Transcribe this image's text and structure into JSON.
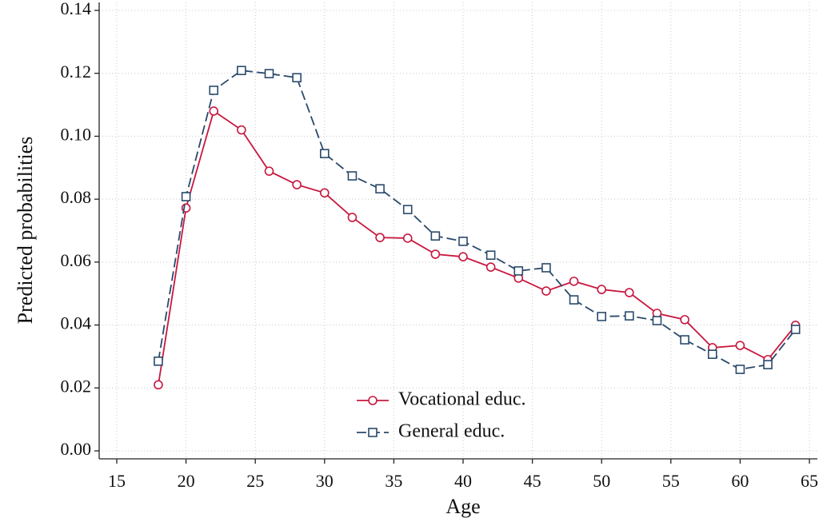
{
  "chart_data": {
    "type": "line",
    "xlabel": "Age",
    "ylabel": "Predicted probabilities",
    "x": [
      18,
      20,
      22,
      24,
      26,
      28,
      30,
      32,
      34,
      36,
      38,
      40,
      42,
      44,
      46,
      48,
      50,
      52,
      54,
      56,
      58,
      60,
      62,
      64
    ],
    "series": [
      {
        "name": "Vocational educ.",
        "color": "#c8173f",
        "marker": "circle",
        "dashed": false,
        "values": [
          0.021,
          0.0772,
          0.108,
          0.102,
          0.0889,
          0.0846,
          0.082,
          0.0742,
          0.0678,
          0.0676,
          0.0625,
          0.0617,
          0.0584,
          0.0549,
          0.0508,
          0.0539,
          0.0513,
          0.0503,
          0.0437,
          0.0417,
          0.0328,
          0.0335,
          0.029,
          0.0399
        ]
      },
      {
        "name": "General educ.",
        "color": "#2a4a6b",
        "marker": "square",
        "dashed": true,
        "values": [
          0.0285,
          0.0808,
          0.1146,
          0.1209,
          0.1199,
          0.1186,
          0.0945,
          0.0874,
          0.0833,
          0.0767,
          0.0683,
          0.0666,
          0.0622,
          0.0572,
          0.0582,
          0.048,
          0.0427,
          0.0429,
          0.0414,
          0.0353,
          0.0307,
          0.0259,
          0.0274,
          0.0386
        ]
      }
    ],
    "xlim": [
      15,
      65
    ],
    "xticks": [
      15,
      20,
      25,
      30,
      35,
      40,
      45,
      50,
      55,
      60,
      65
    ],
    "ylim": [
      0,
      0.14
    ],
    "yticks": [
      {
        "value": 0,
        "label": "0.00"
      },
      {
        "value": 0.02,
        "label": "0.02"
      },
      {
        "value": 0.04,
        "label": "0.04"
      },
      {
        "value": 0.06,
        "label": "0.06"
      },
      {
        "value": 0.08,
        "label": "0.08"
      },
      {
        "value": 0.1,
        "label": "0.10"
      },
      {
        "value": 0.12,
        "label": "0.12"
      },
      {
        "value": 0.14,
        "label": "0.14"
      }
    ],
    "grid": true,
    "legend_position": "bottom"
  }
}
